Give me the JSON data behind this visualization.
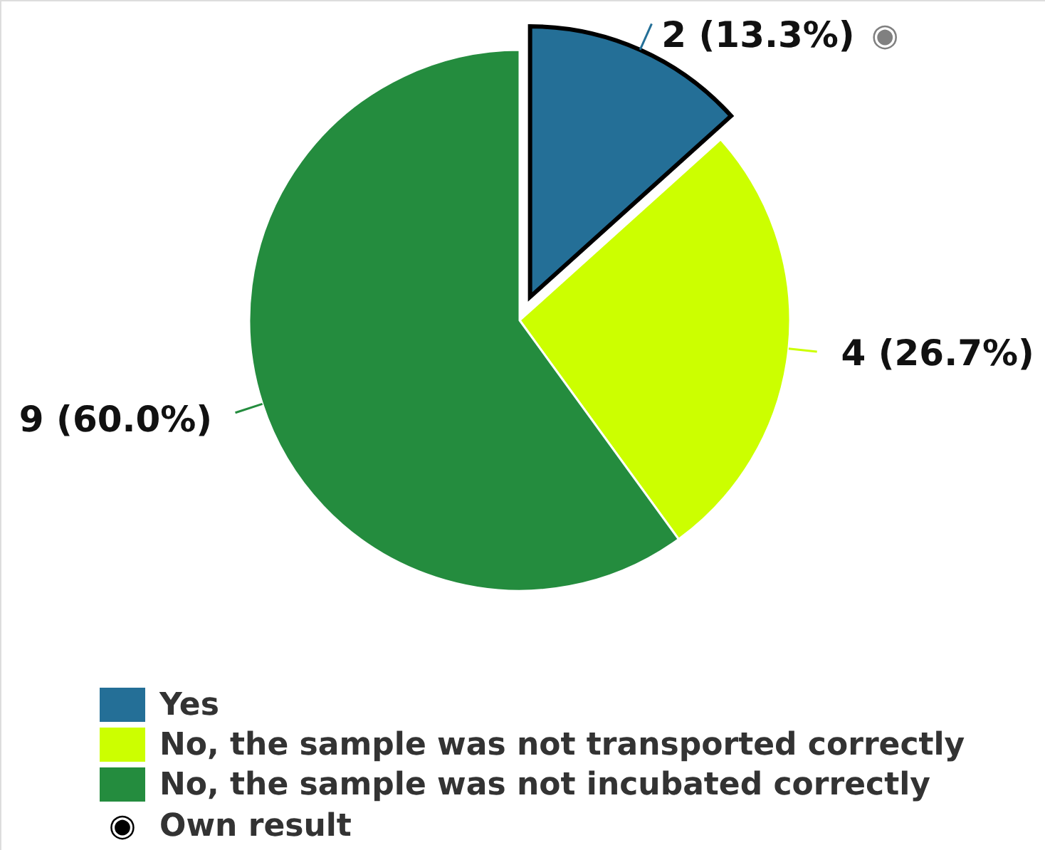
{
  "chart_data": {
    "type": "pie",
    "categories": [
      "Yes",
      "No, the sample was not transported correctly",
      "No, the sample was not incubated correctly"
    ],
    "values": [
      2,
      4,
      9
    ],
    "colors": [
      "#246f97",
      "#ccff00",
      "#248c3e"
    ],
    "value_labels": [
      "2 (13.3%)",
      "4 (26.7%)",
      "9 (60.0%)"
    ],
    "legend": "bottom",
    "annotations": [
      {
        "text": "◉",
        "x": "Yes"
      },
      "Own result"
    ]
  }
}
